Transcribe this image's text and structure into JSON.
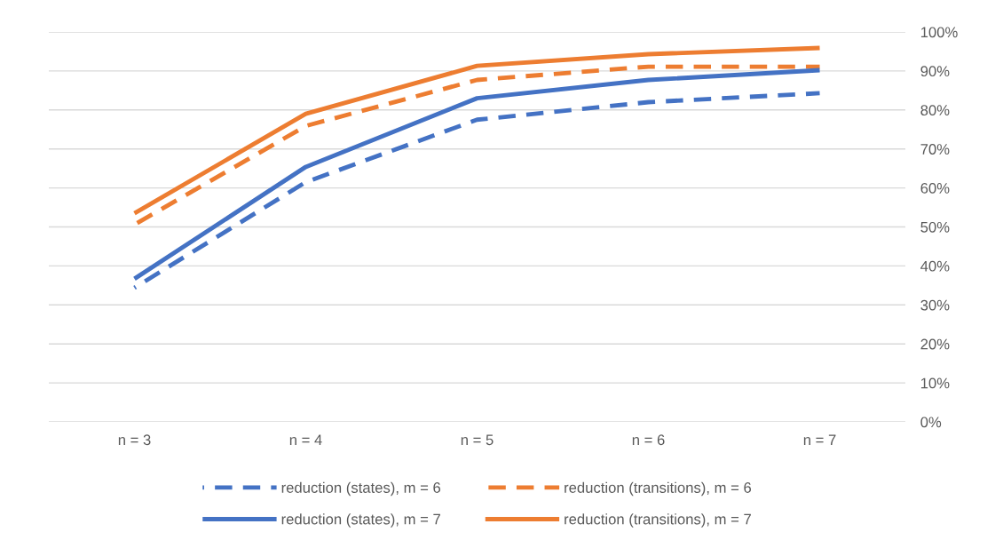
{
  "chart_data": {
    "type": "line",
    "categories": [
      "n = 3",
      "n = 4",
      "n = 5",
      "n = 6",
      "n = 7"
    ],
    "series": [
      {
        "name": "reduction (states), m = 6",
        "color": "#4472c4",
        "line_style": "dashed",
        "values": [
          34.4,
          61.5,
          77.5,
          82,
          84.3
        ]
      },
      {
        "name": "reduction (transitions), m = 6",
        "color": "#ed7d31",
        "line_style": "dashed",
        "values": [
          50.6,
          75.9,
          87.7,
          91.1,
          91.1
        ]
      },
      {
        "name": "reduction (states), m = 7",
        "color": "#4472c4",
        "line_style": "solid",
        "values": [
          36.7,
          65.4,
          83,
          87.7,
          90.2
        ]
      },
      {
        "name": "reduction (transitions), m = 7",
        "color": "#ed7d31",
        "line_style": "solid",
        "values": [
          53.5,
          79,
          91.3,
          94.3,
          95.9
        ]
      }
    ],
    "ylim": [
      0,
      100
    ],
    "yticks": [
      {
        "value": 0,
        "label": "0%"
      },
      {
        "value": 10,
        "label": "10%"
      },
      {
        "value": 20,
        "label": "20%"
      },
      {
        "value": 30,
        "label": "30%"
      },
      {
        "value": 40,
        "label": "40%"
      },
      {
        "value": 50,
        "label": "50%"
      },
      {
        "value": 60,
        "label": "60%"
      },
      {
        "value": 70,
        "label": "70%"
      },
      {
        "value": 80,
        "label": "80%"
      },
      {
        "value": 90,
        "label": "90%"
      },
      {
        "value": 100,
        "label": "100%"
      }
    ],
    "grid": "y",
    "legend": "bottom",
    "marker": "none"
  }
}
